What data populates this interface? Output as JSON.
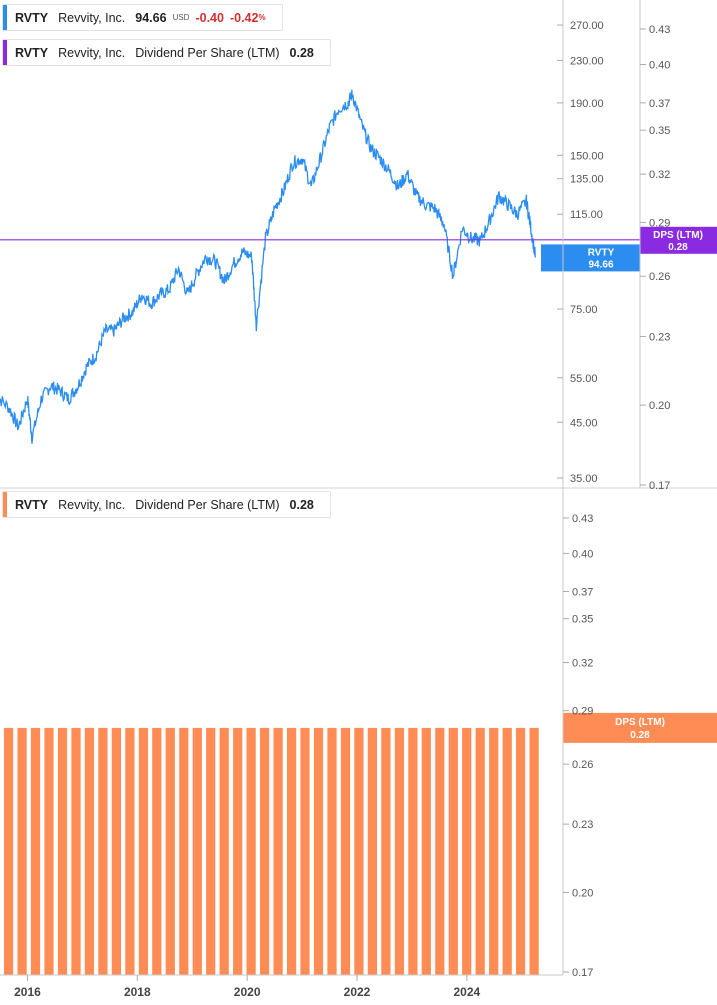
{
  "legend_top": {
    "ticker": "RVTY",
    "name": "Revvity, Inc.",
    "price": "94.66",
    "currency": "USD",
    "change": "-0.40",
    "change_pct": "-0.42",
    "pct_sign": "%",
    "price_color": "#2b8df0"
  },
  "legend_dps_top": {
    "ticker": "RVTY",
    "name": "Revvity, Inc.",
    "metric": "Dividend Per Share (LTM)",
    "value": "0.28",
    "color": "#8a2be2"
  },
  "legend_dps_bottom": {
    "ticker": "RVTY",
    "name": "Revvity, Inc.",
    "metric": "Dividend Per Share (LTM)",
    "value": "0.28",
    "color": "#ff8c55"
  },
  "tags": {
    "price_tag_line1": "RVTY",
    "price_tag_line2": "94.66",
    "dps_tag_line1": "DPS (LTM)",
    "dps_tag_line2": "0.28",
    "dps_bottom_tag_line1": "DPS (LTM)",
    "dps_bottom_tag_line2": "0.28"
  },
  "chart_data": [
    {
      "type": "line",
      "scale": "log",
      "series": [
        {
          "name": "RVTY",
          "color": "#2b8df0",
          "points": [
            [
              "2015-06",
              51
            ],
            [
              "2015-09",
              48
            ],
            [
              "2015-11",
              44
            ],
            [
              "2016-01",
              50
            ],
            [
              "2016-02",
              42
            ],
            [
              "2016-04",
              50
            ],
            [
              "2016-06",
              53
            ],
            [
              "2016-08",
              52
            ],
            [
              "2016-10",
              50
            ],
            [
              "2016-12",
              53
            ],
            [
              "2017-02",
              58
            ],
            [
              "2017-04",
              61
            ],
            [
              "2017-06",
              68
            ],
            [
              "2017-08",
              68
            ],
            [
              "2017-10",
              72
            ],
            [
              "2017-12",
              74
            ],
            [
              "2018-02",
              80
            ],
            [
              "2018-04",
              77
            ],
            [
              "2018-06",
              80
            ],
            [
              "2018-08",
              82
            ],
            [
              "2018-10",
              90
            ],
            [
              "2018-12",
              80
            ],
            [
              "2019-02",
              88
            ],
            [
              "2019-04",
              95
            ],
            [
              "2019-06",
              93
            ],
            [
              "2019-08",
              85
            ],
            [
              "2019-10",
              92
            ],
            [
              "2019-12",
              97
            ],
            [
              "2020-02",
              95
            ],
            [
              "2020-03",
              70
            ],
            [
              "2020-05",
              103
            ],
            [
              "2020-07",
              118
            ],
            [
              "2020-09",
              128
            ],
            [
              "2020-11",
              145
            ],
            [
              "2021-01",
              148
            ],
            [
              "2021-03",
              130
            ],
            [
              "2021-05",
              148
            ],
            [
              "2021-07",
              170
            ],
            [
              "2021-09",
              185
            ],
            [
              "2021-11",
              190
            ],
            [
              "2021-12",
              198
            ],
            [
              "2022-02",
              172
            ],
            [
              "2022-04",
              155
            ],
            [
              "2022-06",
              148
            ],
            [
              "2022-08",
              140
            ],
            [
              "2022-10",
              130
            ],
            [
              "2022-12",
              138
            ],
            [
              "2023-02",
              125
            ],
            [
              "2023-04",
              120
            ],
            [
              "2023-06",
              118
            ],
            [
              "2023-08",
              110
            ],
            [
              "2023-10",
              87
            ],
            [
              "2023-12",
              108
            ],
            [
              "2024-02",
              103
            ],
            [
              "2024-04",
              102
            ],
            [
              "2024-06",
              112
            ],
            [
              "2024-08",
              125
            ],
            [
              "2024-10",
              120
            ],
            [
              "2024-12",
              115
            ],
            [
              "2025-02",
              122
            ],
            [
              "2025-03",
              108
            ],
            [
              "2025-04",
              94.66
            ]
          ]
        },
        {
          "name": "Dividend Per Share (LTM)",
          "color": "#8a2be2",
          "points": [
            [
              "2015-06",
              0.28
            ],
            [
              "2025-04",
              0.28
            ]
          ]
        }
      ],
      "price_axis_ticks": [
        "270.00",
        "230.00",
        "190.00",
        "150.00",
        "135.00",
        "115.00",
        "75.00",
        "55.00",
        "45.00",
        "35.00"
      ],
      "dps_axis_ticks": [
        "0.43",
        "0.40",
        "0.37",
        "0.35",
        "0.32",
        "0.29",
        "0.26",
        "0.23",
        "0.20",
        "0.17"
      ]
    },
    {
      "type": "bar",
      "series": [
        {
          "name": "Dividend Per Share (LTM)",
          "color": "#ff8c55",
          "bar_count": 40,
          "value": 0.28
        }
      ],
      "y_axis_ticks": [
        "0.43",
        "0.40",
        "0.37",
        "0.35",
        "0.32",
        "0.29",
        "0.26",
        "0.23",
        "0.20",
        "0.17"
      ],
      "x_axis_ticks": [
        "2016",
        "2018",
        "2020",
        "2022",
        "2024"
      ]
    }
  ]
}
